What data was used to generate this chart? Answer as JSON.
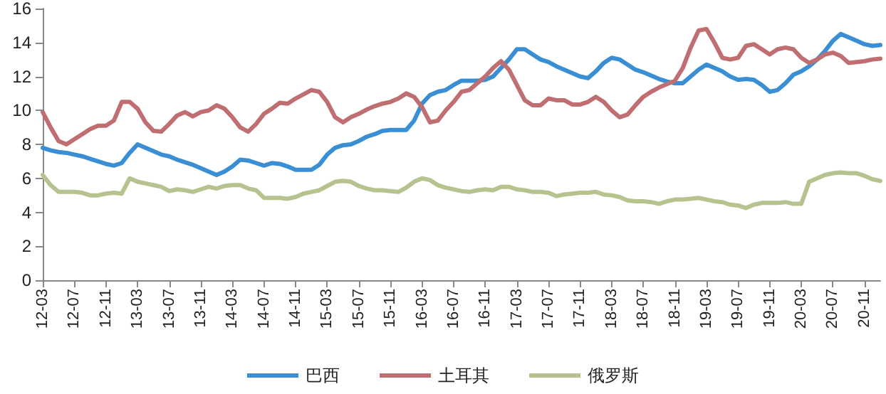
{
  "chart_data": {
    "type": "line",
    "categories": [
      "12-03",
      null,
      null,
      null,
      "12-07",
      null,
      null,
      null,
      "12-11",
      null,
      null,
      null,
      "13-03",
      null,
      null,
      null,
      "13-07",
      null,
      null,
      null,
      "13-11",
      null,
      null,
      null,
      "14-03",
      null,
      null,
      null,
      "14-07",
      null,
      null,
      null,
      "14-11",
      null,
      null,
      null,
      "15-03",
      null,
      null,
      null,
      "15-07",
      null,
      null,
      null,
      "15-11",
      null,
      null,
      null,
      "16-03",
      null,
      null,
      null,
      "16-07",
      null,
      null,
      null,
      "16-11",
      null,
      null,
      null,
      "17-03",
      null,
      null,
      null,
      "17-07",
      null,
      null,
      null,
      "17-11",
      null,
      null,
      null,
      "18-03",
      null,
      null,
      null,
      "18-07",
      null,
      null,
      null,
      "18-11",
      null,
      null,
      null,
      "19-03",
      null,
      null,
      null,
      "19-07",
      null,
      null,
      null,
      "19-11",
      null,
      null,
      null,
      "20-03",
      null,
      null,
      null,
      "20-07",
      null,
      null,
      null,
      "20-11",
      null,
      null
    ],
    "series": [
      {
        "name": "巴西",
        "color": "#3a8fd4",
        "values": [
          7.8,
          7.65,
          7.55,
          7.5,
          7.4,
          7.3,
          7.15,
          7.0,
          6.85,
          6.75,
          6.9,
          7.5,
          8.0,
          7.8,
          7.6,
          7.4,
          7.3,
          7.1,
          6.95,
          6.8,
          6.6,
          6.4,
          6.2,
          6.4,
          6.7,
          7.1,
          7.05,
          6.9,
          6.75,
          6.9,
          6.85,
          6.7,
          6.5,
          6.5,
          6.5,
          6.8,
          7.4,
          7.8,
          7.95,
          8.0,
          8.2,
          8.45,
          8.6,
          8.8,
          8.85,
          8.85,
          8.85,
          9.4,
          10.4,
          10.9,
          11.1,
          11.2,
          11.5,
          11.75,
          11.75,
          11.75,
          11.8,
          12.0,
          12.5,
          13.0,
          13.6,
          13.6,
          13.3,
          13.0,
          12.85,
          12.6,
          12.4,
          12.2,
          12.0,
          11.9,
          12.3,
          12.8,
          13.1,
          13.0,
          12.7,
          12.4,
          12.25,
          12.05,
          11.85,
          11.7,
          11.6,
          11.6,
          12.0,
          12.4,
          12.7,
          12.5,
          12.3,
          12.0,
          11.8,
          11.85,
          11.8,
          11.5,
          11.1,
          11.2,
          11.6,
          12.1,
          12.3,
          12.6,
          13.0,
          13.5,
          14.1,
          14.5,
          14.3,
          14.1,
          13.9,
          13.8,
          13.85
        ]
      },
      {
        "name": "土耳其",
        "color": "#bf6f72",
        "values": [
          9.9,
          9.0,
          8.2,
          8.0,
          8.3,
          8.6,
          8.9,
          9.1,
          9.1,
          9.4,
          10.5,
          10.5,
          10.1,
          9.3,
          8.8,
          8.75,
          9.2,
          9.7,
          9.9,
          9.65,
          9.9,
          10.0,
          10.3,
          10.1,
          9.6,
          9.0,
          8.75,
          9.2,
          9.8,
          10.1,
          10.45,
          10.4,
          10.7,
          10.95,
          11.2,
          11.1,
          10.5,
          9.6,
          9.3,
          9.6,
          9.8,
          10.05,
          10.25,
          10.4,
          10.5,
          10.7,
          11.0,
          10.8,
          10.2,
          9.3,
          9.4,
          10.0,
          10.5,
          11.1,
          11.2,
          11.6,
          12.0,
          12.5,
          12.9,
          12.4,
          11.5,
          10.6,
          10.3,
          10.3,
          10.7,
          10.6,
          10.6,
          10.35,
          10.35,
          10.5,
          10.8,
          10.5,
          10.0,
          9.6,
          9.75,
          10.3,
          10.8,
          11.1,
          11.35,
          11.55,
          11.75,
          12.5,
          13.7,
          14.7,
          14.8,
          14.0,
          13.1,
          13.0,
          13.1,
          13.8,
          13.9,
          13.6,
          13.3,
          13.6,
          13.7,
          13.6,
          13.1,
          12.8,
          13.0,
          13.3,
          13.4,
          13.2,
          12.8,
          12.85,
          12.9,
          13.0,
          13.05
        ]
      },
      {
        "name": "俄罗斯",
        "color": "#b6c38f",
        "values": [
          6.2,
          5.6,
          5.2,
          5.2,
          5.2,
          5.15,
          5.0,
          5.0,
          5.1,
          5.15,
          5.1,
          6.0,
          5.8,
          5.7,
          5.6,
          5.5,
          5.25,
          5.35,
          5.3,
          5.2,
          5.35,
          5.5,
          5.4,
          5.55,
          5.6,
          5.6,
          5.4,
          5.3,
          4.85,
          4.85,
          4.85,
          4.8,
          4.9,
          5.1,
          5.2,
          5.3,
          5.55,
          5.8,
          5.85,
          5.8,
          5.55,
          5.4,
          5.3,
          5.3,
          5.25,
          5.2,
          5.45,
          5.8,
          6.0,
          5.9,
          5.6,
          5.45,
          5.35,
          5.25,
          5.2,
          5.3,
          5.35,
          5.3,
          5.5,
          5.5,
          5.35,
          5.3,
          5.2,
          5.2,
          5.15,
          4.95,
          5.05,
          5.1,
          5.15,
          5.15,
          5.2,
          5.05,
          5.0,
          4.9,
          4.7,
          4.65,
          4.65,
          4.6,
          4.5,
          4.65,
          4.75,
          4.75,
          4.8,
          4.85,
          4.75,
          4.65,
          4.6,
          4.45,
          4.4,
          4.25,
          4.45,
          4.55,
          4.55,
          4.55,
          4.6,
          4.5,
          4.5,
          5.8,
          6.0,
          6.2,
          6.3,
          6.35,
          6.3,
          6.3,
          6.15,
          5.95,
          5.85
        ]
      }
    ],
    "ylim": [
      0,
      16
    ],
    "yticks": [
      0,
      2,
      4,
      6,
      8,
      10,
      12,
      14,
      16
    ],
    "grid": false,
    "legend": "bottom",
    "marker": "none",
    "line_style": "solid"
  }
}
